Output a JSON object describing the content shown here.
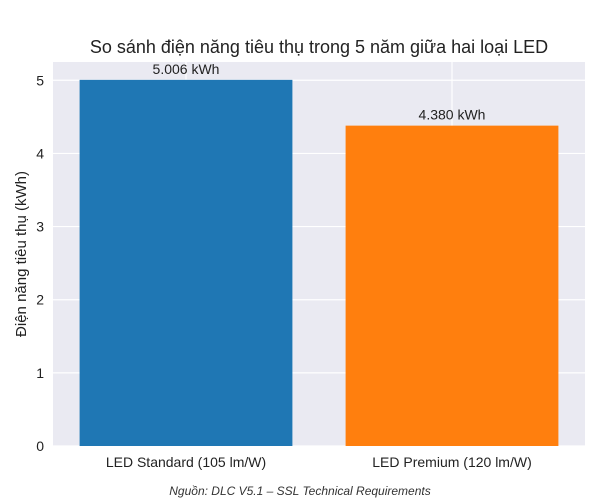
{
  "chart_data": {
    "type": "bar",
    "title": "So sánh điện năng tiêu thụ trong 5 năm giữa hai loại LED",
    "xlabel": "",
    "ylabel": "Điện năng tiêu thụ (kWh)",
    "categories": [
      "LED Standard (105 lm/W)",
      "LED Premium (120 lm/W)"
    ],
    "values": [
      5.006,
      4.38
    ],
    "data_labels": [
      "5.006 kWh",
      "4.380 kWh"
    ],
    "colors": [
      "#1f77b4",
      "#ff7f0e"
    ],
    "ylim": [
      0,
      5.25
    ],
    "yticks": [
      0,
      1,
      2,
      3,
      4,
      5
    ],
    "grid": true,
    "background": "#eaeaf2",
    "source": "Nguồn: DLC V5.1 – SSL Technical Requirements"
  }
}
